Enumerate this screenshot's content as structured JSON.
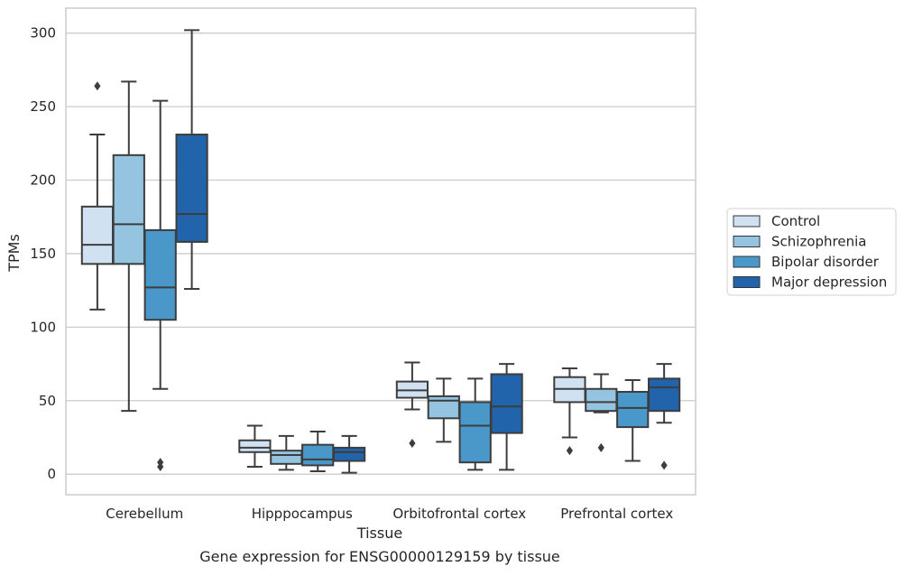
{
  "caption": "Gene expression for ENSG00000129159 by tissue",
  "chart_data": {
    "type": "box",
    "xlabel": "Tissue",
    "ylabel": "TPMs",
    "ylim": [
      -14,
      317
    ],
    "yticks": [
      0,
      50,
      100,
      150,
      200,
      250,
      300
    ],
    "grid": "horizontal",
    "legend_position": "right",
    "categories": [
      "Cerebellum",
      "Hipppocampus",
      "Orbitofrontal cortex",
      "Prefrontal cortex"
    ],
    "series": [
      {
        "name": "Control",
        "color": "#d0e1f2",
        "boxes": [
          {
            "whisker_low": 112,
            "q1": 143,
            "median": 156,
            "q3": 182,
            "whisker_high": 231,
            "outliers": [
              264
            ]
          },
          {
            "whisker_low": 5,
            "q1": 15,
            "median": 18,
            "q3": 23,
            "whisker_high": 33,
            "outliers": []
          },
          {
            "whisker_low": 44,
            "q1": 52,
            "median": 57,
            "q3": 63,
            "whisker_high": 76,
            "outliers": [
              21
            ]
          },
          {
            "whisker_low": 25,
            "q1": 49,
            "median": 58,
            "q3": 66,
            "whisker_high": 72,
            "outliers": [
              16
            ]
          }
        ]
      },
      {
        "name": "Schizophrenia",
        "color": "#94c4df",
        "boxes": [
          {
            "whisker_low": 43,
            "q1": 143,
            "median": 170,
            "q3": 217,
            "whisker_high": 267,
            "outliers": []
          },
          {
            "whisker_low": 3,
            "q1": 7,
            "median": 13,
            "q3": 16,
            "whisker_high": 26,
            "outliers": []
          },
          {
            "whisker_low": 22,
            "q1": 38,
            "median": 50,
            "q3": 53,
            "whisker_high": 65,
            "outliers": []
          },
          {
            "whisker_low": 42,
            "q1": 43,
            "median": 49,
            "q3": 58,
            "whisker_high": 68,
            "outliers": [
              18
            ]
          }
        ]
      },
      {
        "name": "Bipolar disorder",
        "color": "#4a98c9",
        "boxes": [
          {
            "whisker_low": 58,
            "q1": 105,
            "median": 127,
            "q3": 166,
            "whisker_high": 254,
            "outliers": [
              8,
              5
            ]
          },
          {
            "whisker_low": 2,
            "q1": 6,
            "median": 10,
            "q3": 20,
            "whisker_high": 29,
            "outliers": []
          },
          {
            "whisker_low": 3,
            "q1": 8,
            "median": 33,
            "q3": 49,
            "whisker_high": 65,
            "outliers": []
          },
          {
            "whisker_low": 9,
            "q1": 32,
            "median": 45,
            "q3": 56,
            "whisker_high": 64,
            "outliers": []
          }
        ]
      },
      {
        "name": "Major depression",
        "color": "#2164ab",
        "boxes": [
          {
            "whisker_low": 126,
            "q1": 158,
            "median": 177,
            "q3": 231,
            "whisker_high": 302,
            "outliers": []
          },
          {
            "whisker_low": 1,
            "q1": 9,
            "median": 15,
            "q3": 18,
            "whisker_high": 26,
            "outliers": []
          },
          {
            "whisker_low": 3,
            "q1": 28,
            "median": 46,
            "q3": 68,
            "whisker_high": 75,
            "outliers": []
          },
          {
            "whisker_low": 35,
            "q1": 43,
            "median": 59,
            "q3": 65,
            "whisker_high": 75,
            "outliers": [
              6
            ]
          }
        ]
      }
    ]
  }
}
